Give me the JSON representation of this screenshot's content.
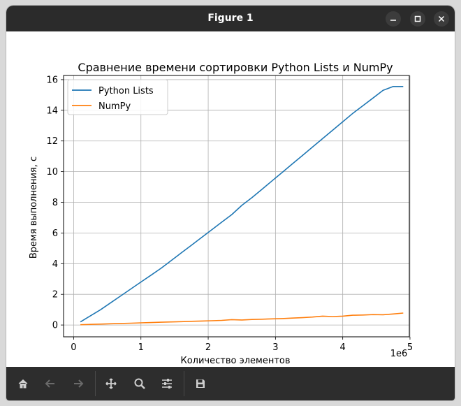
{
  "window": {
    "title": "Figure 1"
  },
  "toolbar": {
    "buttons": [
      "home-icon",
      "back-icon",
      "forward-icon",
      "pan-icon",
      "zoom-icon",
      "configure-subplots-icon",
      "save-icon"
    ]
  },
  "chart_data": {
    "type": "line",
    "title": "Сравнение времени сортировки Python Lists и NumPy",
    "xlabel": "Количество элементов",
    "ylabel": "Время выполнения, с",
    "x_offset_label": "1e6",
    "xlim": [
      -0.15,
      4.99
    ],
    "ylim": [
      -0.77,
      16.27
    ],
    "xticks": [
      0,
      1,
      2,
      3,
      4,
      5
    ],
    "xtick_labels": [
      "0",
      "1",
      "2",
      "3",
      "4",
      "5"
    ],
    "yticks": [
      0,
      2,
      4,
      6,
      8,
      10,
      12,
      14,
      16
    ],
    "ytick_labels": [
      "0",
      "2",
      "4",
      "6",
      "8",
      "10",
      "12",
      "14",
      "16"
    ],
    "grid": true,
    "legend_position": "top-left",
    "x": [
      0.1,
      0.25,
      0.4,
      0.55,
      0.7,
      0.85,
      1.0,
      1.15,
      1.3,
      1.45,
      1.6,
      1.75,
      1.9,
      2.05,
      2.2,
      2.35,
      2.5,
      2.65,
      2.8,
      2.95,
      3.1,
      3.25,
      3.4,
      3.55,
      3.7,
      3.85,
      4.0,
      4.15,
      4.3,
      4.45,
      4.6,
      4.75,
      4.9
    ],
    "series": [
      {
        "name": "Python Lists",
        "color": "#1f77b4",
        "values": [
          0.2,
          0.6,
          1.0,
          1.45,
          1.9,
          2.35,
          2.8,
          3.25,
          3.7,
          4.2,
          4.7,
          5.2,
          5.7,
          6.2,
          6.7,
          7.2,
          7.8,
          8.3,
          8.85,
          9.4,
          9.95,
          10.5,
          11.05,
          11.6,
          12.15,
          12.7,
          13.25,
          13.8,
          14.3,
          14.8,
          15.3,
          15.55,
          15.55
        ],
        "values_note": ""
      },
      {
        "name": "NumPy",
        "color": "#ff7f0e",
        "values": [
          0.02,
          0.04,
          0.06,
          0.08,
          0.1,
          0.12,
          0.14,
          0.16,
          0.18,
          0.2,
          0.22,
          0.24,
          0.26,
          0.28,
          0.3,
          0.35,
          0.33,
          0.36,
          0.38,
          0.4,
          0.42,
          0.45,
          0.48,
          0.52,
          0.58,
          0.55,
          0.58,
          0.64,
          0.65,
          0.68,
          0.67,
          0.72,
          0.78
        ]
      }
    ]
  }
}
